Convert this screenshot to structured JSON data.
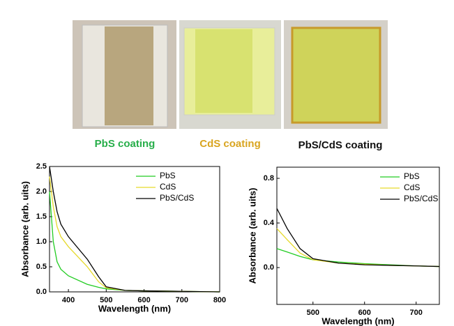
{
  "figure": {
    "captions": [
      "PbS coating",
      "CdS coating",
      "PbS/CdS coating"
    ]
  },
  "chart_data": [
    {
      "type": "line",
      "xlabel": "Wavelength (nm)",
      "ylabel": "Absorbance (arb. uits)",
      "x": [
        350,
        360,
        370,
        380,
        400,
        450,
        480,
        500,
        550,
        600,
        700,
        800
      ],
      "series": [
        {
          "name": "PbS",
          "color": "#22cc22",
          "values": [
            2.0,
            1.0,
            0.6,
            0.45,
            0.32,
            0.15,
            0.09,
            0.06,
            0.03,
            0.02,
            0.01,
            0.0
          ]
        },
        {
          "name": "CdS",
          "color": "#e6d92a",
          "values": [
            2.3,
            1.7,
            1.3,
            1.1,
            0.9,
            0.5,
            0.2,
            0.08,
            0.03,
            0.02,
            0.01,
            0.0
          ]
        },
        {
          "name": "PbS/CdS",
          "color": "#000000",
          "values": [
            2.5,
            2.0,
            1.6,
            1.35,
            1.1,
            0.65,
            0.3,
            0.1,
            0.03,
            0.02,
            0.01,
            0.0
          ]
        }
      ],
      "xlim": [
        350,
        800
      ],
      "xticks": [
        400,
        500,
        600,
        700,
        800
      ],
      "ylim": [
        0,
        2.5
      ],
      "yticks": [
        {
          "value": 0,
          "label": "0.0"
        },
        0.5,
        {
          "value": 1,
          "label": "1.0"
        },
        1.5,
        {
          "value": 2,
          "label": "2.0"
        },
        2.5
      ],
      "legend": "upper right"
    },
    {
      "type": "line",
      "xlabel": "Wavelength (nm)",
      "ylabel": "Absorbance (arb. uits)",
      "x": [
        430,
        450,
        475,
        500,
        550,
        600,
        650,
        700,
        745
      ],
      "series": [
        {
          "name": "PbS",
          "color": "#22cc22",
          "values": [
            0.17,
            0.14,
            0.1,
            0.07,
            0.05,
            0.035,
            0.025,
            0.015,
            0.01
          ]
        },
        {
          "name": "CdS",
          "color": "#e6d92a",
          "values": [
            0.35,
            0.25,
            0.13,
            0.07,
            0.04,
            0.03,
            0.02,
            0.015,
            0.01
          ]
        },
        {
          "name": "PbS/CdS",
          "color": "#000000",
          "values": [
            0.53,
            0.35,
            0.17,
            0.08,
            0.04,
            0.025,
            0.02,
            0.015,
            0.01
          ]
        }
      ],
      "xlim": [
        430,
        745
      ],
      "xticks": [
        500,
        600,
        700
      ],
      "ylim": [
        -0.33,
        0.9
      ],
      "yticks": [
        {
          "value": 0,
          "label": "0.0"
        },
        0.4,
        0.8
      ],
      "legend": "upper right"
    }
  ]
}
